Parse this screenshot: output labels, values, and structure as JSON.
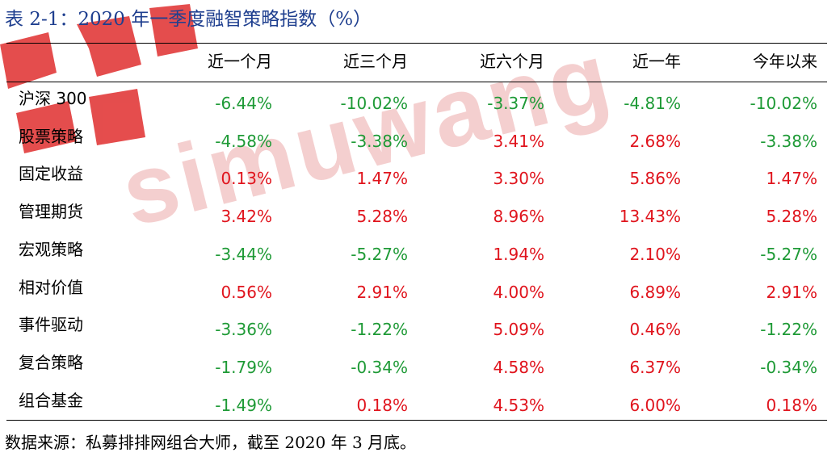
{
  "title": "表 2-1：2020 年一季度融智策略指数（%）",
  "watermark": "simuwang",
  "columns": [
    "近一个月",
    "近三个月",
    "近六个月",
    "近一年",
    "今年以来"
  ],
  "rows": [
    {
      "label": "沪深 300",
      "values": [
        "-6.44%",
        "-10.02%",
        "-3.37%",
        "-4.81%",
        "-10.02%"
      ]
    },
    {
      "label": "股票策略",
      "values": [
        "-4.58%",
        "-3.38%",
        "3.41%",
        "2.68%",
        "-3.38%"
      ]
    },
    {
      "label": "固定收益",
      "values": [
        "0.13%",
        "1.47%",
        "3.30%",
        "5.86%",
        "1.47%"
      ]
    },
    {
      "label": "管理期货",
      "values": [
        "3.42%",
        "5.28%",
        "8.96%",
        "13.43%",
        "5.28%"
      ]
    },
    {
      "label": "宏观策略",
      "values": [
        "-3.44%",
        "-5.27%",
        "1.94%",
        "2.10%",
        "-5.27%"
      ]
    },
    {
      "label": "相对价值",
      "values": [
        "0.56%",
        "2.91%",
        "4.00%",
        "6.89%",
        "2.91%"
      ]
    },
    {
      "label": "事件驱动",
      "values": [
        "-3.36%",
        "-1.22%",
        "5.09%",
        "0.46%",
        "-1.22%"
      ]
    },
    {
      "label": "复合策略",
      "values": [
        "-1.79%",
        "-0.34%",
        "4.58%",
        "6.37%",
        "-0.34%"
      ]
    },
    {
      "label": "组合基金",
      "values": [
        "-1.49%",
        "0.18%",
        "4.53%",
        "6.00%",
        "0.18%"
      ]
    }
  ],
  "source": "数据来源：私募排排网组合大师，截至 2020 年 3 月底。",
  "colors": {
    "negative": "#1e9a36",
    "positive": "#e0141d",
    "title": "#1f3f8f",
    "watermark": "#e23a3a"
  }
}
